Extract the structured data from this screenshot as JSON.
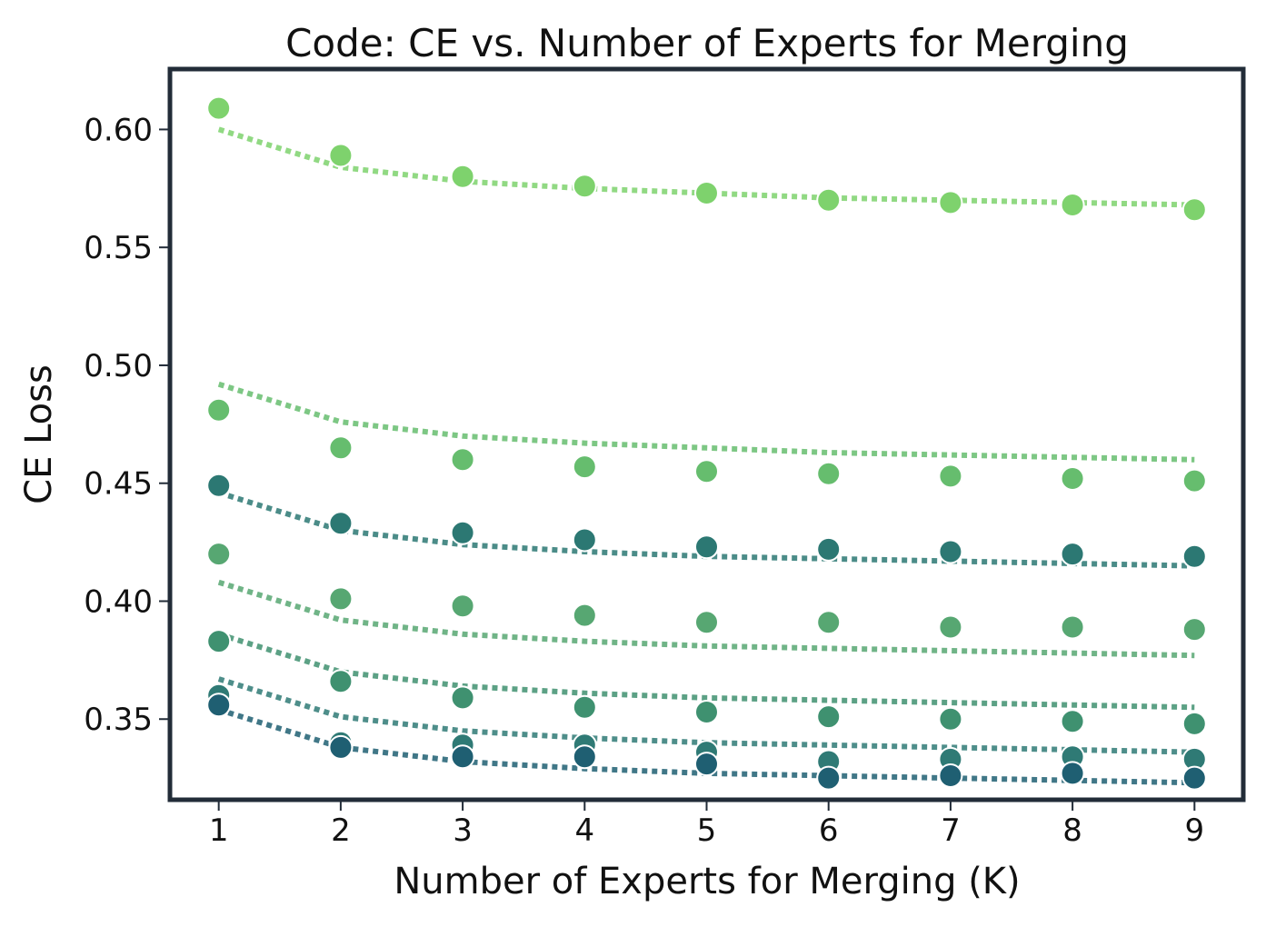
{
  "chart_data": {
    "type": "scatter",
    "title": "Code: CE vs. Number of Experts for Merging",
    "xlabel": "Number of Experts for Merging (K)",
    "ylabel": "CE Loss",
    "x": [
      1,
      2,
      3,
      4,
      5,
      6,
      7,
      8,
      9
    ],
    "xlim": [
      0.6,
      9.4
    ],
    "ylim": [
      0.3158,
      0.6256
    ],
    "xticks": [
      "1",
      "2",
      "3",
      "4",
      "5",
      "6",
      "7",
      "8",
      "9"
    ],
    "yticks": [
      "0.35",
      "0.40",
      "0.45",
      "0.50",
      "0.55",
      "0.60"
    ],
    "ytick_values": [
      0.35,
      0.4,
      0.45,
      0.5,
      0.55,
      0.6
    ],
    "grid": false,
    "legend": "none",
    "series": [
      {
        "color": "#7ed26d",
        "values": [
          0.609,
          0.589,
          0.58,
          0.576,
          0.573,
          0.57,
          0.569,
          0.568,
          0.566
        ],
        "fit": [
          0.6,
          0.584,
          0.578,
          0.575,
          0.573,
          0.571,
          0.57,
          0.569,
          0.568
        ]
      },
      {
        "color": "#66bd6e",
        "values": [
          0.481,
          0.465,
          0.46,
          0.457,
          0.455,
          0.454,
          0.453,
          0.452,
          0.451
        ],
        "fit": [
          0.492,
          0.476,
          0.47,
          0.467,
          0.465,
          0.463,
          0.462,
          0.461,
          0.46
        ]
      },
      {
        "color": "#2c7873",
        "values": [
          0.449,
          0.433,
          0.429,
          0.426,
          0.423,
          0.422,
          0.421,
          0.42,
          0.419
        ],
        "fit": [
          0.446,
          0.43,
          0.424,
          0.421,
          0.419,
          0.418,
          0.417,
          0.416,
          0.415
        ]
      },
      {
        "color": "#57a772",
        "values": [
          0.42,
          0.401,
          0.398,
          0.394,
          0.391,
          0.391,
          0.389,
          0.389,
          0.388
        ],
        "fit": [
          0.408,
          0.392,
          0.386,
          0.383,
          0.381,
          0.38,
          0.379,
          0.378,
          0.377
        ]
      },
      {
        "color": "#3f9170",
        "values": [
          0.383,
          0.366,
          0.359,
          0.355,
          0.353,
          0.351,
          0.35,
          0.349,
          0.348
        ],
        "fit": [
          0.386,
          0.37,
          0.364,
          0.361,
          0.359,
          0.358,
          0.357,
          0.356,
          0.355
        ]
      },
      {
        "color": "#2f7a75",
        "values": [
          0.36,
          0.34,
          0.339,
          0.339,
          0.336,
          0.332,
          0.333,
          0.334,
          0.333
        ],
        "fit": [
          0.367,
          0.351,
          0.345,
          0.342,
          0.34,
          0.339,
          0.338,
          0.337,
          0.336
        ]
      },
      {
        "color": "#1f5f72",
        "values": [
          0.356,
          0.338,
          0.334,
          0.334,
          0.331,
          0.325,
          0.326,
          0.327,
          0.325
        ],
        "fit": [
          0.354,
          0.338,
          0.332,
          0.329,
          0.327,
          0.326,
          0.325,
          0.324,
          0.323
        ]
      }
    ]
  }
}
